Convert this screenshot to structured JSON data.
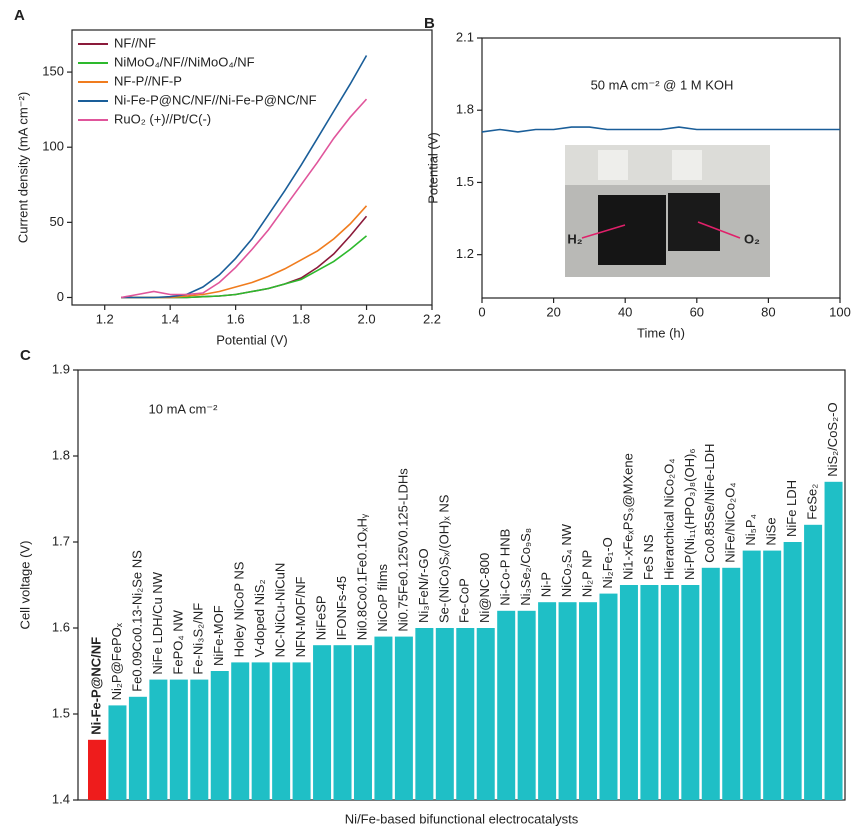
{
  "chart_data": [
    {
      "type": "line",
      "panel": "A",
      "xlabel": "Potential (V)",
      "ylabel": "Current density (mA cm⁻²)",
      "xlim": [
        1.1,
        2.2
      ],
      "xticks": [
        1.2,
        1.4,
        1.6,
        1.8,
        {
          "value": 2,
          "label": "2.0"
        },
        2.2
      ],
      "ylim": [
        -5,
        178
      ],
      "yticks": [
        0,
        50,
        100,
        150
      ],
      "legend": "upper left",
      "x": [
        1.25,
        1.3,
        1.35,
        1.4,
        1.45,
        1.5,
        1.55,
        1.6,
        1.65,
        1.7,
        1.75,
        1.8,
        1.85,
        1.9,
        1.95,
        2.0
      ],
      "series": [
        {
          "name": "NF//NF",
          "color": "#8b1a3a",
          "values": [
            0,
            0,
            0,
            0,
            0,
            0.5,
            1,
            2,
            4,
            6,
            9,
            13,
            20,
            29,
            41,
            54
          ]
        },
        {
          "name": "NiMoO₄/NF//NiMoO₄/NF",
          "color": "#2db92d",
          "values": [
            0,
            0,
            0,
            0,
            0,
            0.5,
            1,
            2,
            4,
            6,
            9,
            12,
            18,
            24,
            32,
            41
          ]
        },
        {
          "name": "NF-P//NF-P",
          "color": "#f07c1e",
          "values": [
            0,
            0,
            0,
            0,
            1,
            2,
            4,
            7,
            10,
            14,
            19,
            25,
            31,
            39,
            49,
            61
          ]
        },
        {
          "name": "Ni-Fe-P@NC/NF//Ni-Fe-P@NC/NF",
          "color": "#1a5e99",
          "values": [
            0,
            0,
            0,
            0.5,
            2,
            7,
            15,
            26,
            39,
            55,
            71,
            88,
            106,
            124,
            142,
            161
          ]
        },
        {
          "name": "RuO₂ (+)//Pt/C(-)",
          "color": "#e0559b",
          "values": [
            0,
            2,
            4,
            2,
            2,
            3,
            10,
            20,
            32,
            45,
            60,
            75,
            90,
            106,
            120,
            132
          ]
        }
      ]
    },
    {
      "type": "line",
      "panel": "B",
      "xlabel": "Time (h)",
      "ylabel": "Potential (V)",
      "xlim": [
        0,
        100
      ],
      "xticks": [
        0,
        20,
        40,
        60,
        80,
        100
      ],
      "ylim": [
        1.02,
        2.1
      ],
      "yticks": [
        1.2,
        1.5,
        1.8,
        2.1
      ],
      "annotations": [
        "50 mA cm⁻² @ 1 M KOH",
        "H₂",
        "O₂"
      ],
      "x": [
        0,
        5,
        10,
        15,
        20,
        25,
        30,
        35,
        40,
        45,
        50,
        55,
        60,
        65,
        70,
        75,
        80,
        85,
        90,
        95,
        100
      ],
      "series": [
        {
          "name": null,
          "color": "#1a5e99",
          "values": [
            1.71,
            1.72,
            1.71,
            1.72,
            1.72,
            1.73,
            1.73,
            1.72,
            1.72,
            1.72,
            1.72,
            1.73,
            1.72,
            1.72,
            1.72,
            1.72,
            1.72,
            1.72,
            1.72,
            1.72,
            1.72
          ]
        }
      ]
    },
    {
      "type": "bar",
      "panel": "C",
      "title": "10 mA cm⁻²",
      "xlabel": "Ni/Fe-based bifunctional electrocatalysts",
      "ylabel": "Cell voltage (V)",
      "ylim": [
        1.4,
        1.9
      ],
      "yticks": [
        1.4,
        1.5,
        1.6,
        1.7,
        1.8,
        1.9
      ],
      "color": "#1fbfc6",
      "categories": [
        "Ni-Fe-P@NC/NF",
        "Ni₂P@FePOₓ",
        "Fe0.09Co0.13-Ni₂Se NS",
        "NiFe LDH/Cu NW",
        "FePO₄ NW",
        "Fe-Ni₃S₂/NF",
        "NiFe-MOF",
        "Holey NiCoP NS",
        "V-doped NiS₂",
        "NC-NiCu-NiCuN",
        "NFN-MOF/NF",
        "NiFeSP",
        "IFONFs-45",
        "Ni0.8Co0.1Fe0.1OₓHᵧ",
        "NiCoP films",
        "Ni0.75Fe0.125V0.125-LDHs",
        "Ni₃FeN/r-GO",
        "Se-(NiCo)Sₓ/(OH)ₓ NS",
        "Fe-CoP",
        "Ni@NC-800",
        "Ni-Co-P HNB",
        "Ni₃Se₂/Co₉S₈",
        "Ni-P",
        "NiCo₂S₄ NW",
        "Ni₂P NP",
        "Ni₂Fe₁-O",
        "Ni1-xFeₓPS₃@MXene",
        "FeS NS",
        "Hierarchical NiCo₂O₄",
        "Ni-P(Ni₁₁(HPO₃)₈(OH)₆",
        "Co0.85Se/NiFe-LDH",
        "NiFe/NiCo₂O₄",
        "Ni₅P₄",
        "NiSe",
        "NiFe LDH",
        "FeSe₂",
        "NiS₂/CoS₂-O"
      ],
      "values": [
        1.47,
        1.51,
        1.52,
        1.54,
        1.54,
        1.54,
        1.55,
        1.56,
        1.56,
        1.56,
        1.56,
        1.58,
        1.58,
        1.58,
        1.59,
        1.59,
        1.6,
        1.6,
        1.6,
        1.6,
        1.62,
        1.62,
        1.63,
        1.63,
        1.63,
        1.64,
        1.65,
        1.65,
        1.65,
        1.65,
        1.67,
        1.67,
        1.69,
        1.69,
        1.7,
        1.72,
        1.77
      ],
      "colors": [
        "#ee1c1c",
        "#1fbfc6",
        "#1fbfc6",
        "#1fbfc6",
        "#1fbfc6",
        "#1fbfc6",
        "#1fbfc6",
        "#1fbfc6",
        "#1fbfc6",
        "#1fbfc6",
        "#1fbfc6",
        "#1fbfc6",
        "#1fbfc6",
        "#1fbfc6",
        "#1fbfc6",
        "#1fbfc6",
        "#1fbfc6",
        "#1fbfc6",
        "#1fbfc6",
        "#1fbfc6",
        "#1fbfc6",
        "#1fbfc6",
        "#1fbfc6",
        "#1fbfc6",
        "#1fbfc6",
        "#1fbfc6",
        "#1fbfc6",
        "#1fbfc6",
        "#1fbfc6",
        "#1fbfc6",
        "#1fbfc6",
        "#1fbfc6",
        "#1fbfc6",
        "#1fbfc6",
        "#1fbfc6",
        "#1fbfc6",
        "#1fbfc6"
      ]
    }
  ]
}
